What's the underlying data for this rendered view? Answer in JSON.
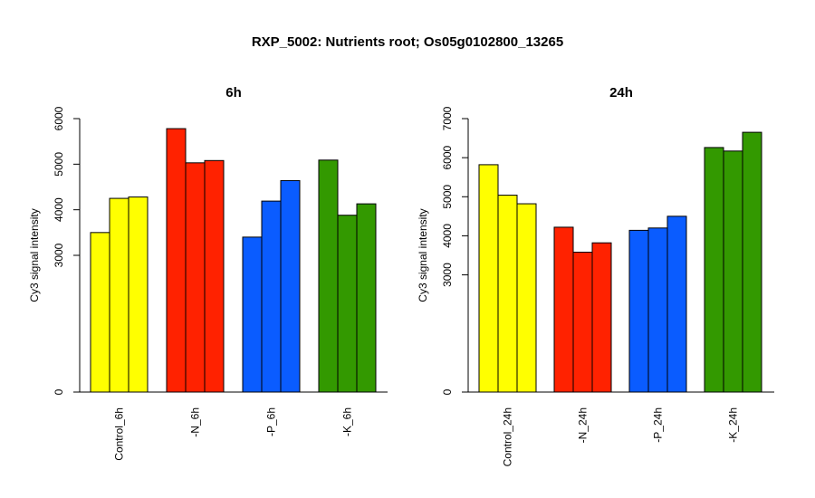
{
  "main_title": "RXP_5002: Nutrients root; Os05g0102800_13265",
  "colors": {
    "Control": "#ffff00",
    "N": "#ff2200",
    "P": "#0a5cff",
    "K": "#339900"
  },
  "chart_data": [
    {
      "type": "bar",
      "title": "6h",
      "ylabel": "Cy3 signal intensity",
      "ylim": [
        0,
        6000
      ],
      "yticks": [
        0,
        3000,
        4000,
        5000,
        6000
      ],
      "categories": [
        "Control_6h",
        "-N_6h",
        "-P_6h",
        "-K_6h"
      ],
      "group_colors": [
        "Control",
        "N",
        "P",
        "K"
      ],
      "values": [
        [
          3500,
          4250,
          4280
        ],
        [
          5780,
          5030,
          5080
        ],
        [
          3400,
          4190,
          4640
        ],
        [
          5090,
          3880,
          4130
        ]
      ]
    },
    {
      "type": "bar",
      "title": "24h",
      "ylabel": "Cy3 signal intensity",
      "ylim": [
        0,
        7000
      ],
      "yticks": [
        0,
        3000,
        4000,
        5000,
        6000,
        7000
      ],
      "categories": [
        "Control_24h",
        "-N_24h",
        "-P_24h",
        "-K_24h"
      ],
      "group_colors": [
        "Control",
        "N",
        "P",
        "K"
      ],
      "values": [
        [
          5820,
          5040,
          4820
        ],
        [
          4220,
          3580,
          3820
        ],
        [
          4140,
          4200,
          4500
        ],
        [
          6260,
          6170,
          6650
        ]
      ]
    }
  ]
}
